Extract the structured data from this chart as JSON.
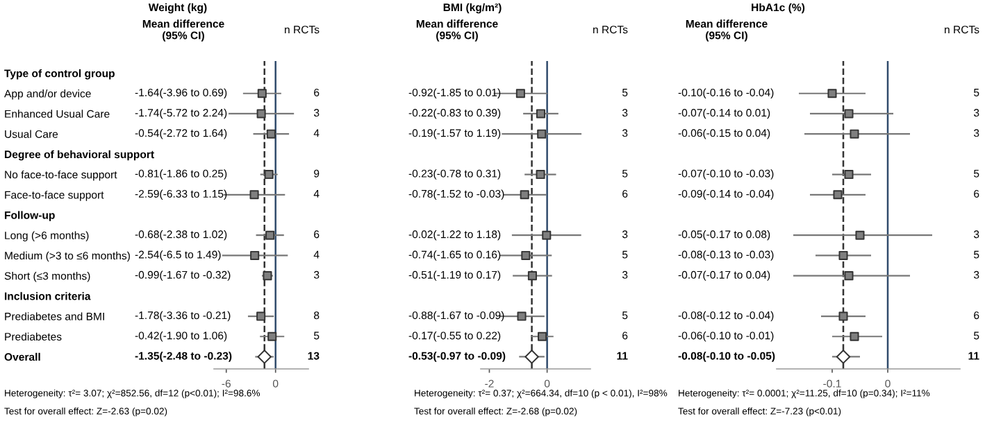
{
  "chart_data": [
    {
      "type": "scatter",
      "orientation": "horizontal",
      "title": "Weight (kg)",
      "categories": [
        "Type of control group",
        "App and/or device",
        "Enhanced Usual Care",
        "Usual Care",
        "Degree of behavioral support",
        "No face-to-face support",
        "Face-to-face support",
        "Follow-up",
        "Long (>6 months)",
        "Medium (>3 to ≤6 months)",
        "Short (≤3 months)",
        "Inclusion criteria",
        "Prediabetes and BMI",
        "Prediabetes",
        "Overall"
      ],
      "series": [
        {
          "type": "scatter",
          "marker": "square",
          "color": "#7f7f7f",
          "values": [
            null,
            -1.64,
            -1.74,
            -0.54,
            null,
            -0.81,
            -2.59,
            null,
            -0.68,
            -2.54,
            -0.99,
            null,
            -1.78,
            -0.42,
            null
          ],
          "errors": [
            null,
            [
              -3.96,
              0.69
            ],
            [
              -5.72,
              2.24
            ],
            [
              -2.72,
              1.64
            ],
            null,
            [
              -1.86,
              0.25
            ],
            [
              -6.33,
              1.15
            ],
            null,
            [
              -2.38,
              1.02
            ],
            [
              -6.5,
              1.49
            ],
            [
              -1.67,
              -0.32
            ],
            null,
            [
              -3.36,
              -0.21
            ],
            [
              -1.9,
              1.06
            ],
            null
          ]
        },
        {
          "type": "scatter",
          "marker": "diamond",
          "color": "#ffffff",
          "values": [
            null,
            null,
            null,
            null,
            null,
            null,
            null,
            null,
            null,
            null,
            null,
            null,
            null,
            null,
            -1.35
          ],
          "errors": [
            null,
            null,
            null,
            null,
            null,
            null,
            null,
            null,
            null,
            null,
            null,
            null,
            null,
            null,
            [
              -2.48,
              -0.23
            ]
          ]
        }
      ],
      "xlim": [
        -7.5,
        4
      ],
      "xticks": [
        -6,
        0
      ],
      "tick_labels": "xy",
      "legend": false,
      "ref_lines": [
        {
          "axis": "x",
          "value": 0,
          "color": "#2f4a6b",
          "line_style": "solid"
        },
        {
          "axis": "x",
          "value": -1.35,
          "color": "#333333",
          "line_style": "dashed"
        }
      ],
      "annotations": [
        "Mean difference\n(95% CI)",
        "n RCTs",
        "Heterogeneity: τ²= 3.07; χ²=852.56, df=12 (p<0.01); I²=98.6%",
        "Test for overall effect: Z=-2.63 (p=0.02)",
        "-1.64(-3.96 to 0.69)",
        "-1.74(-5.72 to 2.24)",
        "-0.54(-2.72 to 1.64)",
        "-0.81(-1.86 to 0.25)",
        "-2.59(-6.33 to 1.15)",
        "-0.68(-2.38 to 1.02)",
        "-2.54(-6.5 to 1.49)",
        "-0.99(-1.67 to -0.32)",
        "-1.78(-3.36 to -0.21)",
        "-0.42(-1.90 to 1.06)",
        "-1.35(-2.48 to -0.23)",
        "6",
        "3",
        "4",
        "9",
        "4",
        "6",
        "4",
        "3",
        "8",
        "5",
        "13"
      ]
    },
    {
      "type": "scatter",
      "orientation": "horizontal",
      "title": "BMI (kg/m²)",
      "categories": [
        null,
        null,
        null,
        null,
        null,
        null,
        null,
        null,
        null,
        null,
        null,
        null,
        null,
        null,
        null
      ],
      "series": [
        {
          "type": "scatter",
          "marker": "square",
          "color": "#7f7f7f",
          "values": [
            null,
            -0.92,
            -0.22,
            -0.19,
            null,
            -0.23,
            -0.78,
            null,
            -0.02,
            -0.74,
            -0.51,
            null,
            -0.88,
            -0.17,
            null
          ],
          "errors": [
            null,
            [
              -1.85,
              0.01
            ],
            [
              -0.83,
              0.39
            ],
            [
              -1.57,
              1.19
            ],
            null,
            [
              -0.78,
              0.31
            ],
            [
              -1.52,
              -0.03
            ],
            null,
            [
              -1.22,
              1.18
            ],
            [
              -1.65,
              0.16
            ],
            [
              -1.19,
              0.17
            ],
            null,
            [
              -1.67,
              -0.09
            ],
            [
              -0.55,
              0.22
            ],
            null
          ]
        },
        {
          "type": "scatter",
          "marker": "diamond",
          "color": "#ffffff",
          "values": [
            null,
            null,
            null,
            null,
            null,
            null,
            null,
            null,
            null,
            null,
            null,
            null,
            null,
            null,
            -0.53
          ],
          "errors": [
            null,
            null,
            null,
            null,
            null,
            null,
            null,
            null,
            null,
            null,
            null,
            null,
            null,
            null,
            [
              -0.97,
              -0.09
            ]
          ]
        }
      ],
      "xlim": [
        -2.3,
        1.5
      ],
      "xticks": [
        -2,
        0
      ],
      "tick_labels": "x",
      "legend": false,
      "ref_lines": [
        {
          "axis": "x",
          "value": 0,
          "color": "#2f4a6b",
          "line_style": "solid"
        },
        {
          "axis": "x",
          "value": -0.53,
          "color": "#333333",
          "line_style": "dashed"
        }
      ],
      "annotations": [
        "Mean difference\n(95% CI)",
        "n RCTs",
        "Heterogeneity: τ²= 0.37; χ²=664.34, df=10 (p < 0.01), I²=98%",
        "Test for overall effect: Z=-2.68 (p=0.02)",
        "-0.92(-1.85 to 0.01)",
        "-0.22(-0.83 to 0.39)",
        "-0.19(-1.57 to 1.19)",
        "-0.23(-0.78 to 0.31)",
        "-0.78(-1.52 to -0.03)",
        "-0.02(-1.22 to 1.18)",
        "-0.74(-1.65 to 0.16)",
        "-0.51(-1.19 to 0.17)",
        "-0.88(-1.67 to -0.09)",
        "-0.17(-0.55 to 0.22)",
        "-0.53(-0.97 to -0.09)",
        "5",
        "3",
        "3",
        "5",
        "6",
        "3",
        "5",
        "3",
        "5",
        "6",
        "11"
      ]
    },
    {
      "type": "scatter",
      "orientation": "horizontal",
      "title": "HbA1c (%)",
      "categories": [
        null,
        null,
        null,
        null,
        null,
        null,
        null,
        null,
        null,
        null,
        null,
        null,
        null,
        null,
        null
      ],
      "series": [
        {
          "type": "scatter",
          "marker": "square",
          "color": "#7f7f7f",
          "values": [
            null,
            -0.1,
            -0.07,
            -0.06,
            null,
            -0.07,
            -0.09,
            null,
            -0.05,
            -0.08,
            -0.07,
            null,
            -0.08,
            -0.06,
            null
          ],
          "errors": [
            null,
            [
              -0.16,
              -0.04
            ],
            [
              -0.14,
              0.01
            ],
            [
              -0.15,
              0.04
            ],
            null,
            [
              -0.1,
              -0.03
            ],
            [
              -0.14,
              -0.04
            ],
            null,
            [
              -0.17,
              0.08
            ],
            [
              -0.13,
              -0.03
            ],
            [
              -0.17,
              0.04
            ],
            null,
            [
              -0.12,
              -0.04
            ],
            [
              -0.1,
              -0.01
            ],
            null
          ]
        },
        {
          "type": "scatter",
          "marker": "diamond",
          "color": "#ffffff",
          "values": [
            null,
            null,
            null,
            null,
            null,
            null,
            null,
            null,
            null,
            null,
            null,
            null,
            null,
            null,
            -0.08
          ],
          "errors": [
            null,
            null,
            null,
            null,
            null,
            null,
            null,
            null,
            null,
            null,
            null,
            null,
            null,
            null,
            [
              -0.1,
              -0.05
            ]
          ]
        }
      ],
      "xlim": [
        -0.2,
        0.13
      ],
      "xticks": [
        -0.1,
        0
      ],
      "tick_labels": "x",
      "legend": false,
      "ref_lines": [
        {
          "axis": "x",
          "value": 0,
          "color": "#2f4a6b",
          "line_style": "solid"
        },
        {
          "axis": "x",
          "value": -0.08,
          "color": "#333333",
          "line_style": "dashed"
        }
      ],
      "annotations": [
        "Mean difference\n(95% CI)",
        "n RCTs",
        "Heterogeneity: τ²= 0.0001; χ²=11.25, df=10 (p=0.34); I²=11%",
        "Test for overall effect: Z=-7.23 (p<0.01)",
        "-0.10(-0.16 to -0.04)",
        "-0.07(-0.14 to 0.01)",
        "-0.06(-0.15 to 0.04)",
        "-0.07(-0.10 to -0.03)",
        "-0.09(-0.14 to -0.04)",
        "-0.05(-0.17 to 0.08)",
        "-0.08(-0.13 to -0.03)",
        "-0.07(-0.17 to 0.04)",
        "-0.08(-0.12 to -0.04)",
        "-0.06(-0.10 to -0.01)",
        "-0.08(-0.10 to -0.05)",
        "5",
        "3",
        "3",
        "5",
        "6",
        "3",
        "5",
        "3",
        "6",
        "5",
        "11"
      ]
    }
  ]
}
